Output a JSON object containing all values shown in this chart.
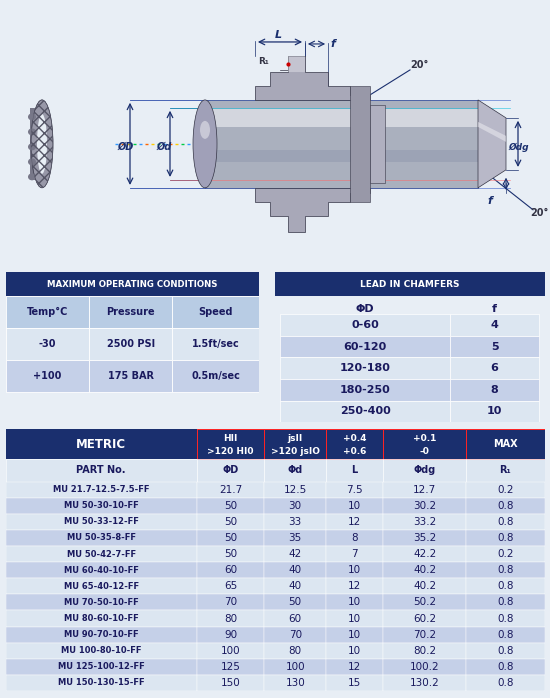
{
  "bg_color": "#e8eef5",
  "dark_blue": "#1a2f6e",
  "light_blue": "#b8cce4",
  "lighter_blue": "#dce6f1",
  "med_blue": "#c5d0e8",
  "white": "#ffffff",
  "text_dark": "#1a1a5e",
  "max_op_title": "MAXIMUM OPERATING CONDITIONS",
  "max_op_headers": [
    "Temp°C",
    "Pressure",
    "Speed"
  ],
  "max_op_rows": [
    [
      "-30",
      "2500 PSI",
      "1.5ft/sec"
    ],
    [
      "+100",
      "175 BAR",
      "0.5m/sec"
    ]
  ],
  "chamfer_title": "LEAD IN CHAMFERS",
  "chamfer_headers": [
    "ΦD",
    "f"
  ],
  "chamfer_rows": [
    [
      "0-60",
      "4"
    ],
    [
      "60-120",
      "5"
    ],
    [
      "120-180",
      "6"
    ],
    [
      "180-250",
      "8"
    ],
    [
      "250-400",
      "10"
    ]
  ],
  "metric_title": "METRIC",
  "metric_col_headers": [
    "HII\n>120 HI0",
    "jsII\n>120 jsIO",
    "+0.4\n+0.6",
    "+0.1\n-0",
    "MAX"
  ],
  "metric_sub_headers": [
    "PART No.",
    "ΦD",
    "Φd",
    "L",
    "Φdg",
    "R₁"
  ],
  "metric_rows": [
    [
      "MU 21.7-12.5-7.5-FF",
      "21.7",
      "12.5",
      "7.5",
      "12.7",
      "0.2"
    ],
    [
      "MU 50-30-10-FF",
      "50",
      "30",
      "10",
      "30.2",
      "0.8"
    ],
    [
      "MU 50-33-12-FF",
      "50",
      "33",
      "12",
      "33.2",
      "0.8"
    ],
    [
      "MU 50-35-8-FF",
      "50",
      "35",
      "8",
      "35.2",
      "0.8"
    ],
    [
      "MU 50-42-7-FF",
      "50",
      "42",
      "7",
      "42.2",
      "0.2"
    ],
    [
      "MU 60-40-10-FF",
      "60",
      "40",
      "10",
      "40.2",
      "0.8"
    ],
    [
      "MU 65-40-12-FF",
      "65",
      "40",
      "12",
      "40.2",
      "0.8"
    ],
    [
      "MU 70-50-10-FF",
      "70",
      "50",
      "10",
      "50.2",
      "0.8"
    ],
    [
      "MU 80-60-10-FF",
      "80",
      "60",
      "10",
      "60.2",
      "0.8"
    ],
    [
      "MU 90-70-10-FF",
      "90",
      "70",
      "10",
      "70.2",
      "0.8"
    ],
    [
      "MU 100-80-10-FF",
      "100",
      "80",
      "10",
      "80.2",
      "0.8"
    ],
    [
      "MU 125-100-12-FF",
      "125",
      "100",
      "12",
      "100.2",
      "0.8"
    ],
    [
      "MU 150-130-15-FF",
      "150",
      "130",
      "15",
      "130.2",
      "0.8"
    ]
  ]
}
